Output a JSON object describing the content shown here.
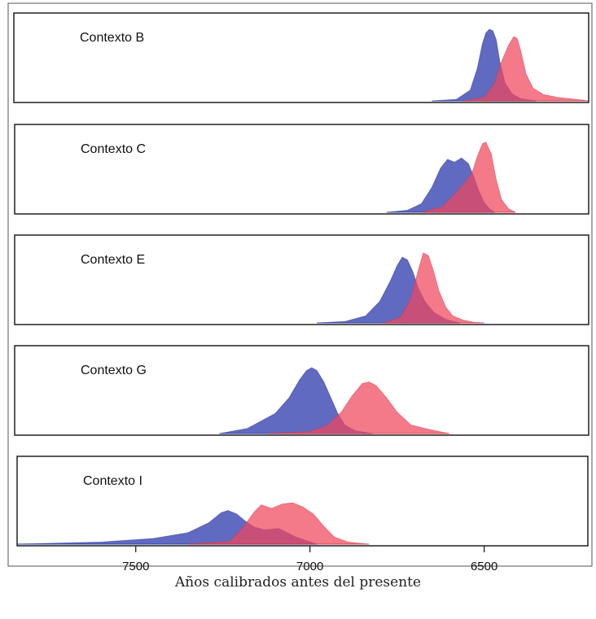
{
  "chart_data": {
    "type": "area",
    "xlabel": "Años calibrados antes del presente",
    "x_ticks": [
      7500,
      7000,
      6500
    ],
    "xlim": [
      7850,
      6200
    ],
    "x_reversed": true,
    "colors": {
      "blue": "#4a55b8",
      "red": "#f0475b",
      "frame": "#111111"
    },
    "panels": [
      {
        "label": "Contexto B",
        "series": [
          {
            "color": "blue",
            "x": [
              6650,
              6580,
              6540,
              6520,
              6505,
              6495,
              6485,
              6475,
              6465,
              6455,
              6440,
              6420,
              6395,
              6350
            ],
            "y": [
              0,
              0.02,
              0.15,
              0.45,
              0.8,
              0.95,
              1.0,
              0.98,
              0.85,
              0.55,
              0.25,
              0.1,
              0.03,
              0
            ]
          },
          {
            "color": "red",
            "x": [
              6560,
              6500,
              6470,
              6450,
              6430,
              6415,
              6405,
              6395,
              6380,
              6360,
              6330,
              6290,
              6250,
              6200
            ],
            "y": [
              0,
              0.05,
              0.25,
              0.55,
              0.78,
              0.9,
              0.87,
              0.7,
              0.38,
              0.18,
              0.09,
              0.05,
              0.03,
              0
            ]
          }
        ]
      },
      {
        "label": "Contexto C",
        "series": [
          {
            "color": "blue",
            "x": [
              6780,
              6720,
              6680,
              6650,
              6625,
              6605,
              6585,
              6565,
              6545,
              6530,
              6515,
              6500,
              6485,
              6470
            ],
            "y": [
              0,
              0.03,
              0.12,
              0.35,
              0.62,
              0.74,
              0.7,
              0.76,
              0.68,
              0.5,
              0.3,
              0.14,
              0.05,
              0
            ]
          },
          {
            "color": "red",
            "x": [
              6680,
              6620,
              6580,
              6555,
              6535,
              6520,
              6505,
              6495,
              6480,
              6465,
              6450,
              6430,
              6410
            ],
            "y": [
              0,
              0.08,
              0.28,
              0.42,
              0.55,
              0.78,
              0.96,
              0.98,
              0.82,
              0.45,
              0.18,
              0.05,
              0
            ]
          }
        ]
      },
      {
        "label": "Contexto E",
        "series": [
          {
            "color": "blue",
            "x": [
              6980,
              6900,
              6840,
              6800,
              6770,
              6750,
              6735,
              6720,
              6705,
              6690,
              6670,
              6645,
              6610,
              6570
            ],
            "y": [
              0,
              0.02,
              0.1,
              0.3,
              0.58,
              0.8,
              0.92,
              0.88,
              0.72,
              0.5,
              0.3,
              0.15,
              0.05,
              0
            ]
          },
          {
            "color": "red",
            "x": [
              6790,
              6740,
              6710,
              6690,
              6675,
              6660,
              6645,
              6630,
              6610,
              6590,
              6560,
              6530,
              6500
            ],
            "y": [
              0,
              0.08,
              0.35,
              0.72,
              0.98,
              0.94,
              0.72,
              0.45,
              0.22,
              0.1,
              0.04,
              0.01,
              0
            ]
          }
        ]
      },
      {
        "label": "Contexto G",
        "series": [
          {
            "color": "blue",
            "x": [
              7260,
              7180,
              7100,
              7060,
              7030,
              7010,
              6995,
              6980,
              6960,
              6940,
              6920,
              6900,
              6870,
              6820
            ],
            "y": [
              0,
              0.07,
              0.28,
              0.5,
              0.75,
              0.88,
              0.92,
              0.88,
              0.72,
              0.5,
              0.28,
              0.12,
              0.04,
              0
            ]
          },
          {
            "color": "red",
            "x": [
              7120,
              7000,
              6950,
              6910,
              6880,
              6850,
              6830,
              6810,
              6780,
              6750,
              6710,
              6660,
              6600
            ],
            "y": [
              0,
              0.03,
              0.12,
              0.3,
              0.52,
              0.7,
              0.72,
              0.67,
              0.5,
              0.3,
              0.12,
              0.06,
              0
            ]
          }
        ]
      },
      {
        "label": "Contexto I",
        "series": [
          {
            "color": "blue",
            "x": [
              7850,
              7600,
              7450,
              7350,
              7290,
              7255,
              7235,
              7210,
              7185,
              7160,
              7130,
              7090,
              7040,
              6980
            ],
            "y": [
              0,
              0.03,
              0.08,
              0.16,
              0.3,
              0.44,
              0.47,
              0.42,
              0.32,
              0.24,
              0.2,
              0.22,
              0.1,
              0
            ]
          },
          {
            "color": "red",
            "x": [
              7350,
              7230,
              7190,
              7160,
              7140,
              7110,
              7080,
              7050,
              7020,
              6990,
              6960,
              6930,
              6890,
              6830
            ],
            "y": [
              0,
              0.04,
              0.25,
              0.45,
              0.55,
              0.5,
              0.56,
              0.58,
              0.52,
              0.42,
              0.25,
              0.1,
              0.03,
              0
            ]
          }
        ]
      }
    ]
  }
}
